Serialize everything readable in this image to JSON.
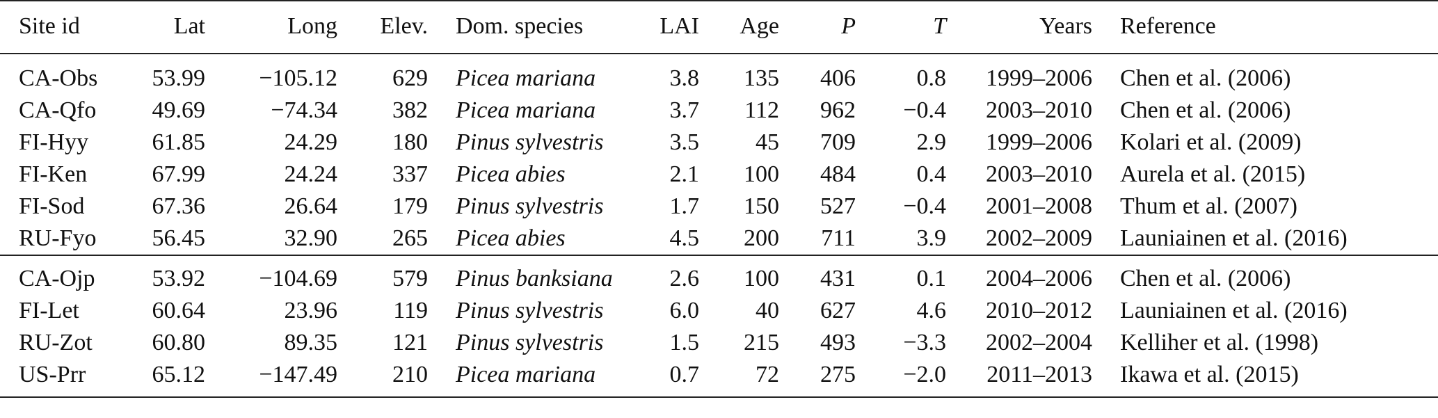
{
  "table": {
    "headers": {
      "site": "Site id",
      "lat": "Lat",
      "long": "Long",
      "elev": "Elev.",
      "species": "Dom. species",
      "lai": "LAI",
      "age": "Age",
      "p": "P",
      "t": "T",
      "years": "Years",
      "reference": "Reference"
    },
    "group1": [
      {
        "site": "CA-Obs",
        "lat": "53.99",
        "long": "−105.12",
        "elev": "629",
        "species": "Picea mariana",
        "lai": "3.8",
        "age": "135",
        "p": "406",
        "t": "0.8",
        "years": "1999–2006",
        "reference": "Chen et al. (2006)"
      },
      {
        "site": "CA-Qfo",
        "lat": "49.69",
        "long": "−74.34",
        "elev": "382",
        "species": "Picea mariana",
        "lai": "3.7",
        "age": "112",
        "p": "962",
        "t": "−0.4",
        "years": "2003–2010",
        "reference": "Chen et al. (2006)"
      },
      {
        "site": "FI-Hyy",
        "lat": "61.85",
        "long": "24.29",
        "elev": "180",
        "species": "Pinus sylvestris",
        "lai": "3.5",
        "age": "45",
        "p": "709",
        "t": "2.9",
        "years": "1999–2006",
        "reference": "Kolari et al. (2009)"
      },
      {
        "site": "FI-Ken",
        "lat": "67.99",
        "long": "24.24",
        "elev": "337",
        "species": "Picea abies",
        "lai": "2.1",
        "age": "100",
        "p": "484",
        "t": "0.4",
        "years": "2003–2010",
        "reference": "Aurela et al. (2015)"
      },
      {
        "site": "FI-Sod",
        "lat": "67.36",
        "long": "26.64",
        "elev": "179",
        "species": "Pinus sylvestris",
        "lai": "1.7",
        "age": "150",
        "p": "527",
        "t": "−0.4",
        "years": "2001–2008",
        "reference": "Thum et al. (2007)"
      },
      {
        "site": "RU-Fyo",
        "lat": "56.45",
        "long": "32.90",
        "elev": "265",
        "species": "Picea abies",
        "lai": "4.5",
        "age": "200",
        "p": "711",
        "t": "3.9",
        "years": "2002–2009",
        "reference": "Launiainen et al. (2016)"
      }
    ],
    "group2": [
      {
        "site": "CA-Ojp",
        "lat": "53.92",
        "long": "−104.69",
        "elev": "579",
        "species": "Pinus banksiana",
        "lai": "2.6",
        "age": "100",
        "p": "431",
        "t": "0.1",
        "years": "2004–2006",
        "reference": "Chen et al. (2006)"
      },
      {
        "site": "FI-Let",
        "lat": "60.64",
        "long": "23.96",
        "elev": "119",
        "species": "Pinus sylvestris",
        "lai": "6.0",
        "age": "40",
        "p": "627",
        "t": "4.6",
        "years": "2010–2012",
        "reference": "Launiainen et al. (2016)"
      },
      {
        "site": "RU-Zot",
        "lat": "60.80",
        "long": "89.35",
        "elev": "121",
        "species": "Pinus sylvestris",
        "lai": "1.5",
        "age": "215",
        "p": "493",
        "t": "−3.3",
        "years": "2002–2004",
        "reference": "Kelliher et al. (1998)"
      },
      {
        "site": "US-Prr",
        "lat": "65.12",
        "long": "−147.49",
        "elev": "210",
        "species": "Picea mariana",
        "lai": "0.7",
        "age": "72",
        "p": "275",
        "t": "−2.0",
        "years": "2011–2013",
        "reference": "Ikawa et al. (2015)"
      }
    ]
  }
}
